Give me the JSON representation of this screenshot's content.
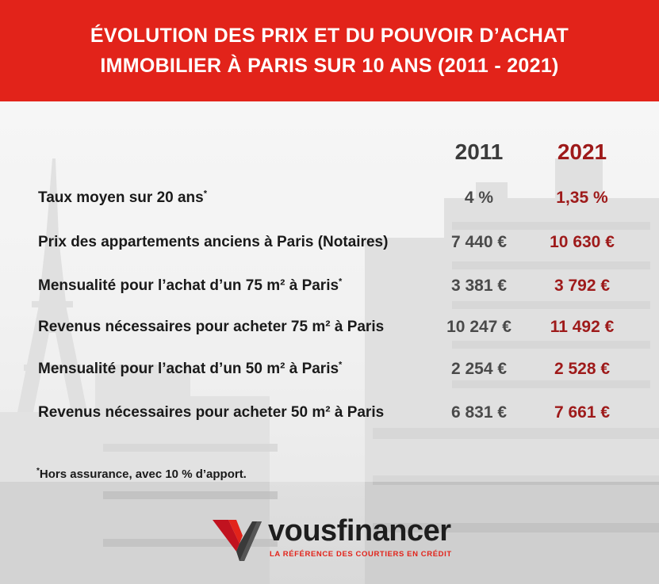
{
  "header": {
    "line1": "ÉVOLUTION DES PRIX ET DU POUVOIR D’ACHAT",
    "line2": "IMMOBILIER À PARIS SUR 10 ANS (2011 - 2021)"
  },
  "columns": {
    "year1": "2011",
    "year2": "2021"
  },
  "rows": [
    {
      "label": "Taux moyen sur 20 ans",
      "mark": "*",
      "v2011": "4 %",
      "v2021": "1,35 %"
    },
    {
      "label": "Prix des appartements anciens à Paris (Notaires)",
      "mark": "",
      "v2011": "7 440 €",
      "v2021": "10 630 €"
    },
    {
      "label": "Mensualité pour l’achat d’un 75 m² à Paris",
      "mark": "*",
      "v2011": "3 381 €",
      "v2021": "3 792 €"
    },
    {
      "label": "Revenus nécessaires pour acheter 75 m² à Paris",
      "mark": "",
      "v2011": "10 247 €",
      "v2021": "11 492 €"
    },
    {
      "label": "Mensualité pour l’achat d’un 50 m² à Paris",
      "mark": "*",
      "v2011": "2 254 €",
      "v2021": "2 528 €"
    },
    {
      "label": "Revenus nécessaires pour acheter 50 m² à Paris",
      "mark": "",
      "v2011": "6 831 €",
      "v2021": "7 661 €"
    }
  ],
  "footnote": {
    "mark": "*",
    "text": "Hors assurance, avec 10 % d’apport."
  },
  "logo": {
    "word": "vousfinancer",
    "tagline": "LA RÉFÉRENCE DES COURTIERS EN CRÉDIT",
    "mark_icon": "v-chevron-logo-icon"
  },
  "colors": {
    "header_red": "#e2231a",
    "value_2021": "#9e1a1a",
    "value_2011": "#4a4a4a"
  }
}
